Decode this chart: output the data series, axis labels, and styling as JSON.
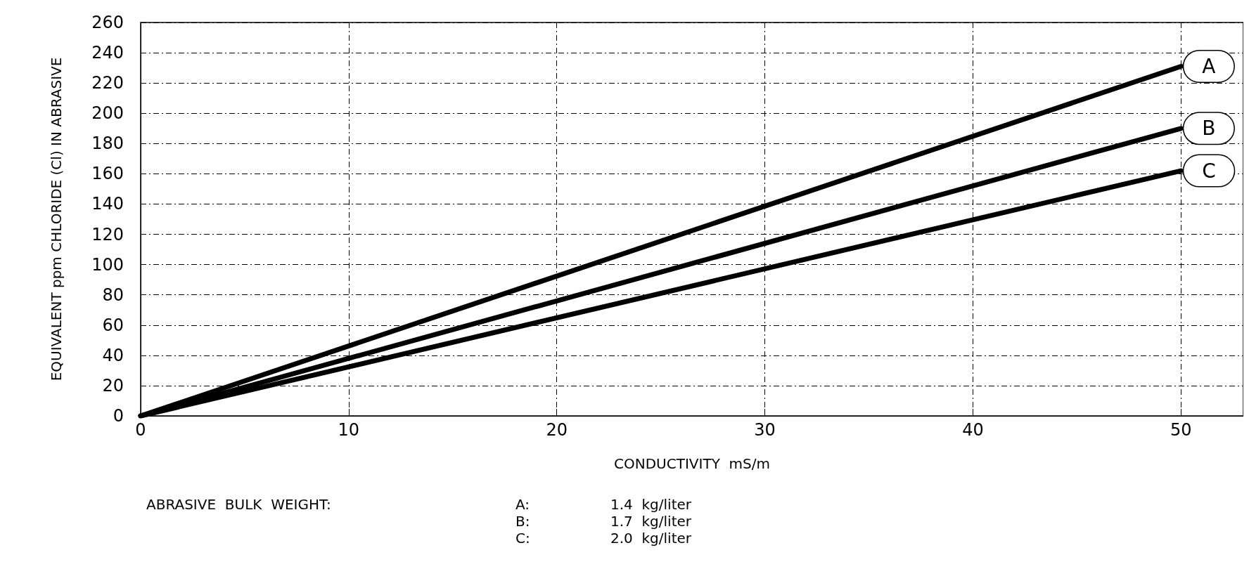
{
  "chart_data": {
    "type": "line",
    "xlabel": "CONDUCTIVITY  mS/m",
    "ylabel": "EQUIVALENT ppm CHLORIDE (Cl) IN ABRASIVE",
    "x": [
      0,
      50
    ],
    "series": [
      {
        "name": "A",
        "color": "#000000",
        "values": [
          0,
          231
        ]
      },
      {
        "name": "B",
        "color": "#000000",
        "values": [
          0,
          190
        ]
      },
      {
        "name": "C",
        "color": "#000000",
        "values": [
          0,
          162
        ]
      }
    ],
    "xlim": [
      0,
      53
    ],
    "xticks": [
      0,
      10,
      20,
      30,
      40,
      50
    ],
    "ylim": [
      0,
      260
    ],
    "yticks": [
      0,
      20,
      40,
      60,
      80,
      100,
      120,
      140,
      160,
      180,
      200,
      220,
      240,
      260
    ],
    "grid": true,
    "legend": "right",
    "marker": "none",
    "line_style": "solid",
    "annotations": [
      "ABRASIVE  BULK  WEIGHT:",
      "A:",
      "B:",
      "C:",
      "1.4  kg/liter",
      "1.7  kg/liter",
      "2.0  kg/liter"
    ]
  }
}
